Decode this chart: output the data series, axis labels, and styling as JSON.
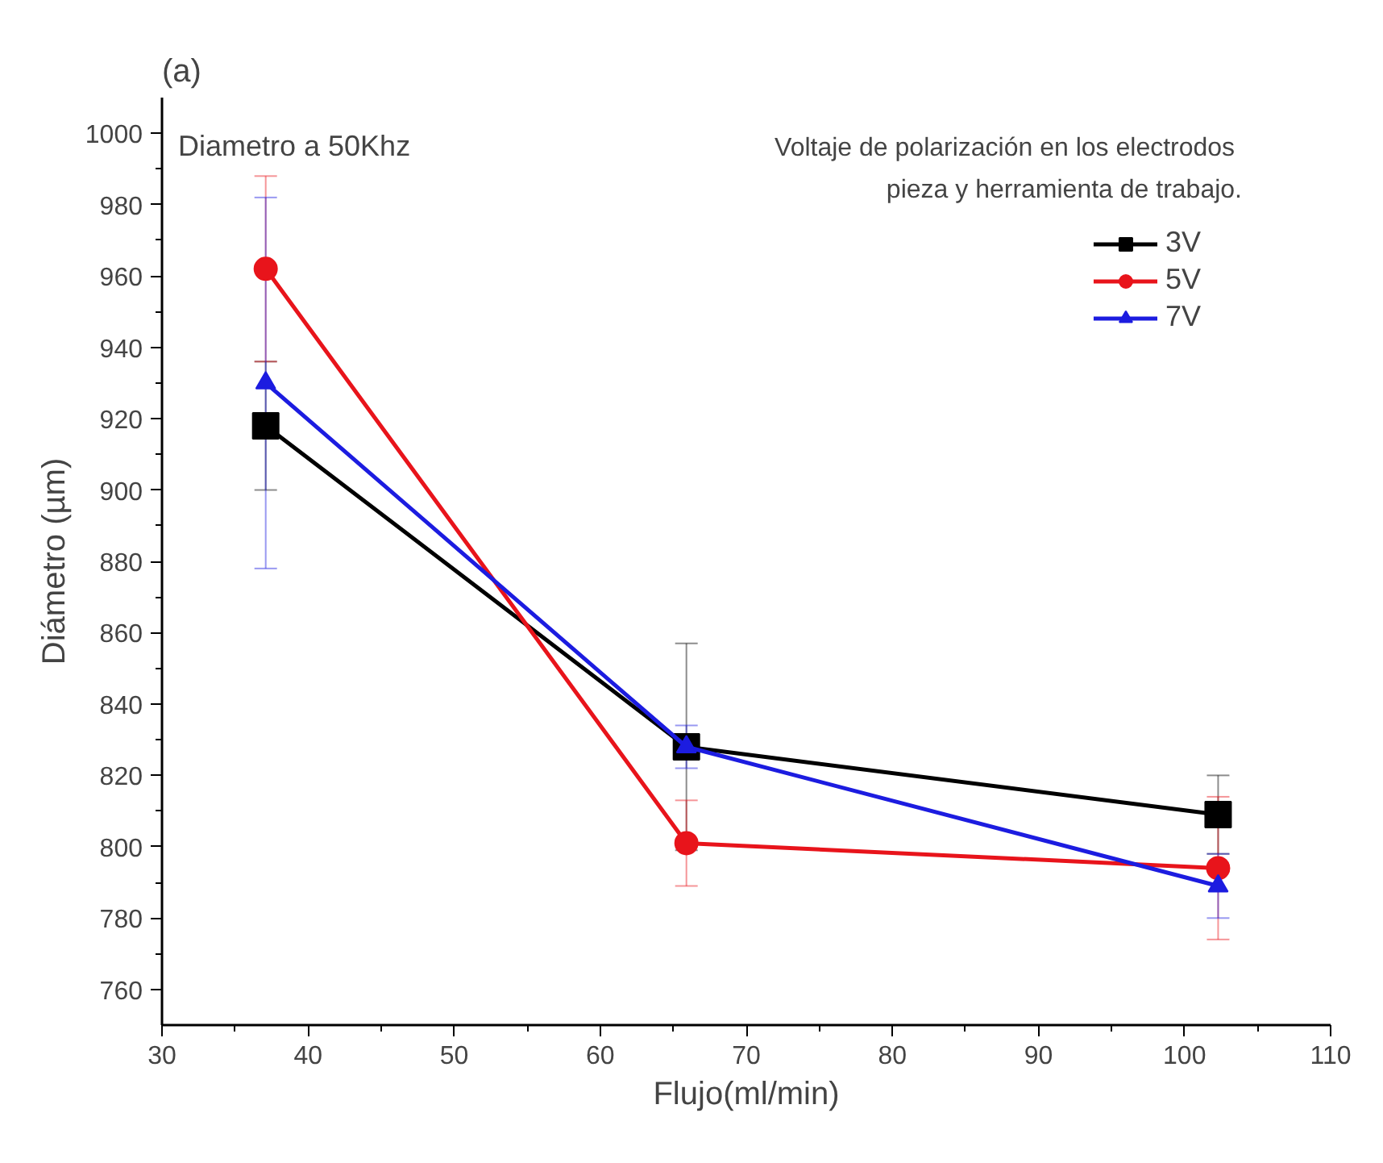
{
  "chart_data": {
    "type": "line",
    "title": "(a)",
    "xlabel": "Flujo(ml/min)",
    "ylabel": "Diámetro (µm)",
    "annotations": [
      "Diametro a 50Khz",
      "Voltaje de polarización  en los electrodos",
      "pieza y herramienta de trabajo."
    ],
    "x": [
      37.1,
      65.9,
      102.3
    ],
    "series": [
      {
        "name": "3V",
        "color": "#000000",
        "marker": "square",
        "values": [
          918,
          828,
          809
        ],
        "errors": [
          18,
          29,
          11
        ]
      },
      {
        "name": "5V",
        "color": "#e8141b",
        "marker": "circle",
        "values": [
          962,
          801,
          794
        ],
        "errors": [
          26,
          12,
          20
        ]
      },
      {
        "name": "7V",
        "color": "#1c1ce0",
        "marker": "triangle",
        "values": [
          930,
          828,
          789
        ],
        "errors": [
          52,
          6,
          9
        ]
      }
    ],
    "xlim": [
      30,
      110
    ],
    "xticks": [
      30,
      40,
      50,
      60,
      70,
      80,
      90,
      100,
      110
    ],
    "ylim": [
      750,
      1010
    ],
    "yticks": [
      760,
      780,
      800,
      820,
      840,
      860,
      880,
      900,
      920,
      940,
      960,
      980,
      1000
    ],
    "legend": "top right",
    "grid": false
  }
}
